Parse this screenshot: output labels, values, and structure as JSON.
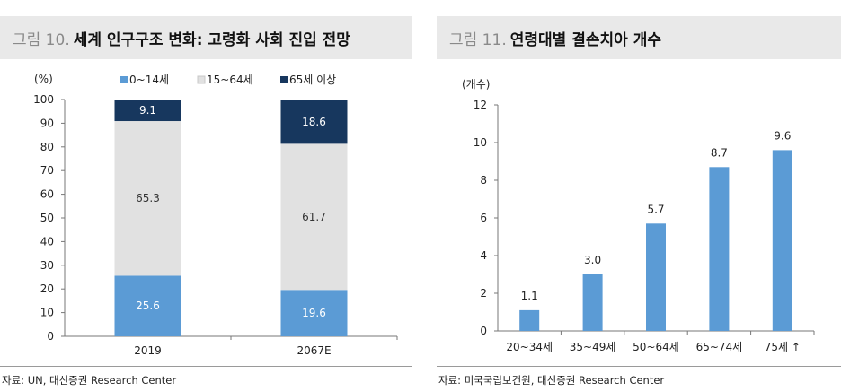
{
  "panels": {
    "left": {
      "figure_label": "그림 10.",
      "figure_title": "세계 인구구조 변화: 고령화 사회 진입 전망",
      "unit_label": "(%)",
      "source": "자료: UN, 대신증권 Research Center"
    },
    "right": {
      "figure_label": "그림 11.",
      "figure_title": "연령대별 결손치아 개수",
      "unit_label": "(개수)",
      "source": "자료: 미국국립보건원, 대신증권 Research Center"
    }
  },
  "colors": {
    "age_0_14": "#5b9bd5",
    "age_15_64": "#e1e1e1",
    "age_65_plus": "#17375e",
    "bar_right": "#5b9bd5"
  },
  "chart_data": [
    {
      "type": "bar",
      "stacked": true,
      "categories": [
        "2019",
        "2067E"
      ],
      "series": [
        {
          "name": "0~14세",
          "values": [
            25.6,
            19.6
          ],
          "color": "#5b9bd5"
        },
        {
          "name": "15~64세",
          "values": [
            65.3,
            61.7
          ],
          "color": "#e1e1e1"
        },
        {
          "name": "65세 이상",
          "values": [
            9.1,
            18.6
          ],
          "color": "#17375e"
        }
      ],
      "ylabel": "(%)",
      "ylim": [
        0,
        100
      ],
      "yticks": [
        0,
        10,
        20,
        30,
        40,
        50,
        60,
        70,
        80,
        90,
        100
      ],
      "legend": "top",
      "grid": false
    },
    {
      "type": "bar",
      "categories": [
        "20~34세",
        "35~49세",
        "50~64세",
        "65~74세",
        "75세 ↑"
      ],
      "values": [
        1.1,
        3.0,
        5.7,
        8.7,
        9.6
      ],
      "value_labels": [
        "1.1",
        "3.0",
        "5.7",
        "8.7",
        "9.6"
      ],
      "color": "#5b9bd5",
      "ylabel": "(개수)",
      "ylim": [
        0,
        12
      ],
      "yticks": [
        0,
        2,
        4,
        6,
        8,
        10,
        12
      ],
      "grid": false
    }
  ]
}
